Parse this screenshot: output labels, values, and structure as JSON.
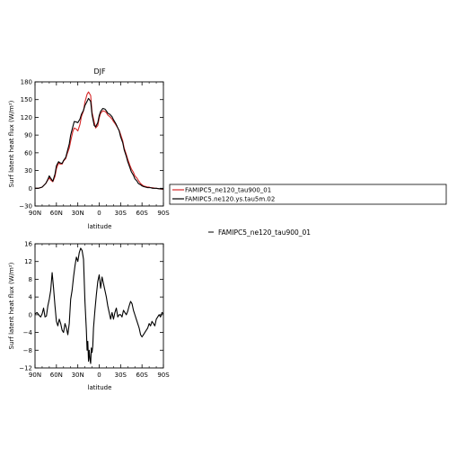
{
  "chart_data": [
    {
      "type": "line",
      "title": "DJF",
      "xlabel": "latitude",
      "ylabel": "Surf latent heat flux (W/m²)",
      "xlim": [
        90,
        -90
      ],
      "ylim": [
        -30,
        180
      ],
      "x_ticks": [
        90,
        60,
        30,
        0,
        -30,
        -60,
        -90
      ],
      "x_tick_labels": [
        "90N",
        "60N",
        "30N",
        "0",
        "30S",
        "60S",
        "90S"
      ],
      "y_ticks": [
        -30,
        0,
        30,
        60,
        90,
        120,
        150,
        180
      ],
      "y_tick_labels": [
        "−30",
        "0",
        "30",
        "60",
        "90",
        "120",
        "150",
        "180"
      ],
      "legend_position": "right",
      "series": [
        {
          "name": "FAMIPC5_ne120_tau900_01",
          "color": "#d62728",
          "x": [
            90,
            85,
            80,
            75,
            72,
            70,
            68,
            65,
            62,
            60,
            57,
            55,
            52,
            50,
            47,
            45,
            42,
            40,
            37,
            35,
            32,
            30,
            27,
            25,
            22,
            20,
            17,
            15,
            12,
            10,
            7,
            5,
            2,
            0,
            -2,
            -5,
            -8,
            -10,
            -12,
            -15,
            -18,
            -20,
            -23,
            -25,
            -28,
            -30,
            -33,
            -35,
            -38,
            -40,
            -43,
            -45,
            -48,
            -50,
            -53,
            -55,
            -58,
            -60,
            -62,
            -65,
            -68,
            -70,
            -72,
            -75,
            -78,
            -80,
            -85,
            -90
          ],
          "values": [
            0,
            0,
            2,
            8,
            14,
            18,
            14,
            11,
            20,
            33,
            43,
            41,
            41,
            46,
            50,
            58,
            68,
            80,
            96,
            102,
            100,
            97,
            108,
            121,
            131,
            146,
            159,
            163,
            157,
            128,
            112,
            102,
            106,
            119,
            127,
            131,
            130,
            128,
            124,
            121,
            117,
            113,
            108,
            104,
            98,
            91,
            80,
            68,
            57,
            49,
            39,
            33,
            27,
            21,
            17,
            13,
            8,
            6,
            4,
            3,
            2,
            2,
            1,
            1,
            0,
            0,
            -1,
            -2
          ]
        },
        {
          "name": "FAMIPC5.ne120.ys.tau5m.02",
          "color": "#000000",
          "x": [
            90,
            85,
            80,
            75,
            72,
            70,
            68,
            65,
            62,
            60,
            57,
            55,
            52,
            50,
            47,
            45,
            42,
            40,
            37,
            35,
            32,
            30,
            27,
            25,
            22,
            20,
            17,
            15,
            12,
            10,
            7,
            5,
            2,
            0,
            -2,
            -5,
            -8,
            -10,
            -12,
            -15,
            -18,
            -20,
            -23,
            -25,
            -28,
            -30,
            -33,
            -35,
            -38,
            -40,
            -43,
            -45,
            -48,
            -50,
            -53,
            -55,
            -58,
            -60,
            -62,
            -65,
            -68,
            -70,
            -72,
            -75,
            -78,
            -80,
            -85,
            -90
          ],
          "values": [
            0,
            0,
            2,
            8,
            15,
            21,
            17,
            12,
            24,
            38,
            45,
            43,
            42,
            47,
            52,
            61,
            75,
            90,
            104,
            113,
            112,
            111,
            117,
            125,
            132,
            140,
            147,
            152,
            147,
            124,
            106,
            104,
            111,
            123,
            130,
            135,
            134,
            131,
            127,
            125,
            121,
            116,
            110,
            105,
            97,
            87,
            77,
            65,
            54,
            45,
            35,
            28,
            22,
            16,
            12,
            8,
            6,
            4,
            3,
            2,
            1,
            1,
            1,
            0,
            0,
            0,
            -1,
            -1
          ]
        }
      ]
    },
    {
      "type": "line",
      "title": "",
      "xlabel": "latitude",
      "ylabel": "Surf latent heat flux (W/m²)",
      "xlim": [
        90,
        -90
      ],
      "ylim": [
        -12,
        16
      ],
      "x_ticks": [
        90,
        60,
        30,
        0,
        -30,
        -60,
        -90
      ],
      "x_tick_labels": [
        "90N",
        "60N",
        "30N",
        "0",
        "30S",
        "60S",
        "90S"
      ],
      "y_ticks": [
        -12,
        -8,
        -4,
        0,
        4,
        8,
        12,
        16
      ],
      "y_tick_labels": [
        "−12",
        "−8",
        "−4",
        "0",
        "4",
        "8",
        "12",
        "16"
      ],
      "legend_position": "right",
      "series": [
        {
          "name": "FAMIPC5_ne120_tau900_01",
          "color": "#000000",
          "x": [
            90,
            87,
            84,
            82,
            80,
            78,
            76,
            74,
            72,
            70,
            68,
            66,
            64,
            62,
            60,
            58,
            56,
            54,
            52,
            50,
            48,
            46,
            44,
            42,
            40,
            38,
            36,
            34,
            32,
            30,
            28,
            26,
            24,
            22,
            20,
            18,
            17,
            16,
            15,
            14,
            13,
            12,
            11,
            10,
            9,
            8,
            6,
            4,
            2,
            0,
            -2,
            -4,
            -6,
            -8,
            -10,
            -12,
            -14,
            -16,
            -18,
            -20,
            -22,
            -24,
            -26,
            -28,
            -30,
            -32,
            -34,
            -36,
            -38,
            -40,
            -42,
            -44,
            -46,
            -48,
            -50,
            -52,
            -54,
            -56,
            -58,
            -60,
            -62,
            -64,
            -66,
            -68,
            -70,
            -72,
            -74,
            -76,
            -78,
            -80,
            -82,
            -84,
            -86,
            -88,
            -90
          ],
          "values": [
            0.2,
            0.5,
            -0.2,
            -0.5,
            0.2,
            1.5,
            -0.5,
            -0.3,
            2.0,
            3.5,
            5.5,
            9.5,
            6.0,
            2.0,
            -1.5,
            -2.5,
            -1.0,
            -2.0,
            -3.5,
            -4.0,
            -2.0,
            -3.0,
            -4.5,
            -2.0,
            3.5,
            5.5,
            8.5,
            11.0,
            13.0,
            12.0,
            14.0,
            15.0,
            14.5,
            12.5,
            3.0,
            -3.5,
            -8.0,
            -6.0,
            -10.5,
            -8.0,
            -10.0,
            -11.0,
            -7.5,
            -8.5,
            -7.0,
            -3.0,
            1.0,
            4.5,
            7.5,
            9.0,
            6.0,
            8.5,
            7.0,
            5.5,
            4.0,
            2.0,
            0.5,
            -1.0,
            0.5,
            -1.0,
            0.5,
            1.5,
            -0.5,
            0.0,
            0.0,
            -0.5,
            1.0,
            0.5,
            0.0,
            0.8,
            2.0,
            3.0,
            2.5,
            1.0,
            0.0,
            -1.0,
            -2.0,
            -3.0,
            -4.5,
            -5.0,
            -4.5,
            -4.0,
            -3.5,
            -3.0,
            -2.0,
            -2.5,
            -1.5,
            -2.0,
            -2.5,
            -1.0,
            -0.5,
            0.0,
            -0.5,
            0.5,
            0.2
          ]
        }
      ]
    }
  ]
}
